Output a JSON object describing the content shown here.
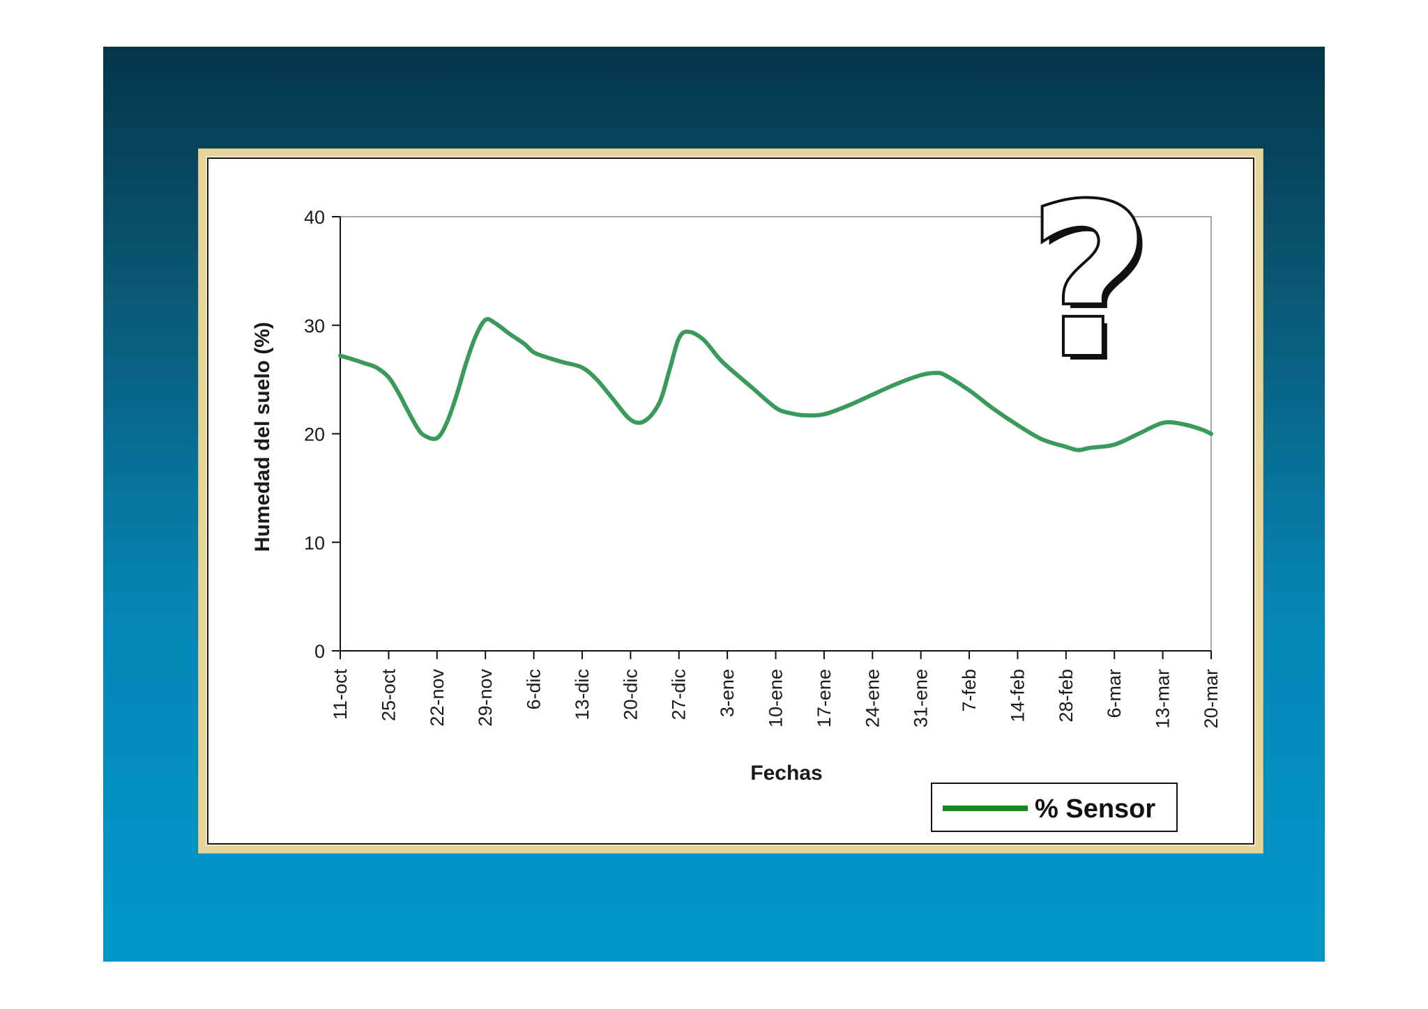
{
  "chart_data": {
    "type": "line",
    "title": "",
    "xlabel": "Fechas",
    "ylabel": "Humedad del suelo (%)",
    "ylim": [
      0,
      40
    ],
    "yticks": [
      0,
      10,
      20,
      30,
      40
    ],
    "categories": [
      "11-oct",
      "25-oct",
      "22-nov",
      "29-nov",
      "6-dic",
      "13-dic",
      "20-dic",
      "27-dic",
      "3-ene",
      "10-ene",
      "17-ene",
      "24-ene",
      "31-ene",
      "7-feb",
      "14-feb",
      "28-feb",
      "6-mar",
      "13-mar",
      "20-mar"
    ],
    "series": [
      {
        "name": "% Sensor",
        "color": "#3A9A5C",
        "x": [
          0,
          0.3,
          0.5,
          0.75,
          1,
          1.2,
          1.4,
          1.6,
          1.75,
          2,
          2.2,
          2.4,
          2.6,
          2.8,
          3,
          3.2,
          3.5,
          3.8,
          4,
          4.3,
          4.6,
          5,
          5.3,
          5.6,
          6,
          6.3,
          6.6,
          6.8,
          7,
          7.2,
          7.5,
          7.8,
          8,
          8.5,
          9,
          9.3,
          9.6,
          10,
          10.5,
          11,
          11.5,
          12,
          12.3,
          12.5,
          13,
          13.5,
          14,
          14.5,
          15,
          15.25,
          15.5,
          16,
          16.5,
          17,
          17.4,
          17.8,
          18
        ],
        "values": [
          27.2,
          26.8,
          26.5,
          26.1,
          25.2,
          23.8,
          22.1,
          20.5,
          19.8,
          19.6,
          21.0,
          23.5,
          26.5,
          29.0,
          30.5,
          30.2,
          29.2,
          28.3,
          27.5,
          27.0,
          26.6,
          26.1,
          25.0,
          23.4,
          21.3,
          21.2,
          22.9,
          25.8,
          28.8,
          29.4,
          28.7,
          27.1,
          26.2,
          24.3,
          22.4,
          21.9,
          21.7,
          21.8,
          22.6,
          23.6,
          24.6,
          25.4,
          25.6,
          25.4,
          24.0,
          22.3,
          20.8,
          19.5,
          18.8,
          18.5,
          18.7,
          19.0,
          20.0,
          21.0,
          20.9,
          20.4,
          20.0
        ]
      }
    ],
    "legend": {
      "label": "% Sensor",
      "position": "bottom-right"
    },
    "annotation": {
      "icon": "question-mark-icon",
      "glyph": "?"
    },
    "grid": false
  },
  "colors": {
    "background_top": "#043649",
    "background_bottom": "#0098CB",
    "frame": "#E6D59B",
    "series": "#3A9A5C",
    "legend_swatch": "#118A1E"
  }
}
